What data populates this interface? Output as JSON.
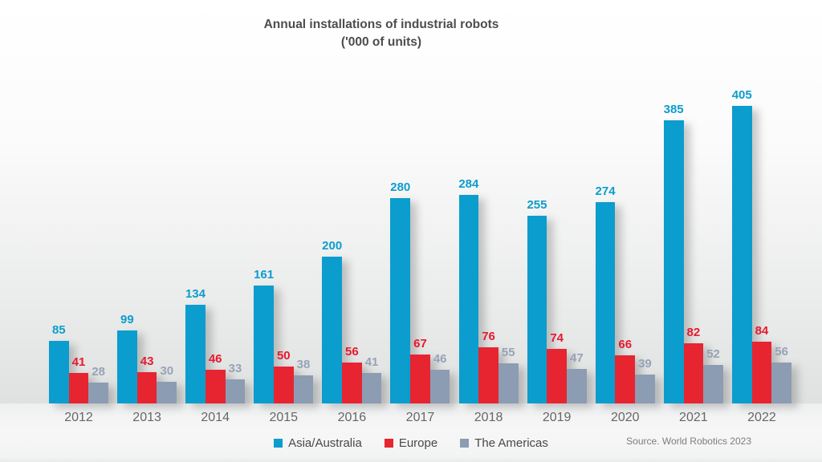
{
  "title": {
    "line1": "Annual installations of industrial robots",
    "line2": "('000 of units)"
  },
  "source_note": "Source. World Robotics 2023",
  "chart_data": {
    "type": "bar",
    "title": "Annual installations of industrial robots ('000 of units)",
    "categories": [
      "2012",
      "2013",
      "2014",
      "2015",
      "2016",
      "2017",
      "2018",
      "2019",
      "2020",
      "2021",
      "2022"
    ],
    "series": [
      {
        "name": "Asia/Australia",
        "color": "#0b9dcd",
        "label_color": "#0b9dcd",
        "values": [
          85,
          99,
          134,
          161,
          200,
          280,
          284,
          255,
          274,
          385,
          405
        ]
      },
      {
        "name": "Europe",
        "color": "#e62530",
        "label_color": "#e8192c",
        "values": [
          41,
          43,
          46,
          50,
          56,
          67,
          76,
          74,
          66,
          82,
          84
        ]
      },
      {
        "name": "The Americas",
        "color": "#8c9cb2",
        "label_color": "#96a3b6",
        "values": [
          28,
          30,
          33,
          38,
          41,
          46,
          55,
          47,
          39,
          52,
          56
        ]
      }
    ],
    "xlabel": "",
    "ylabel": "",
    "ylim": [
      0,
      440
    ],
    "grid": false,
    "legend_position": "bottom",
    "value_labels": true
  }
}
